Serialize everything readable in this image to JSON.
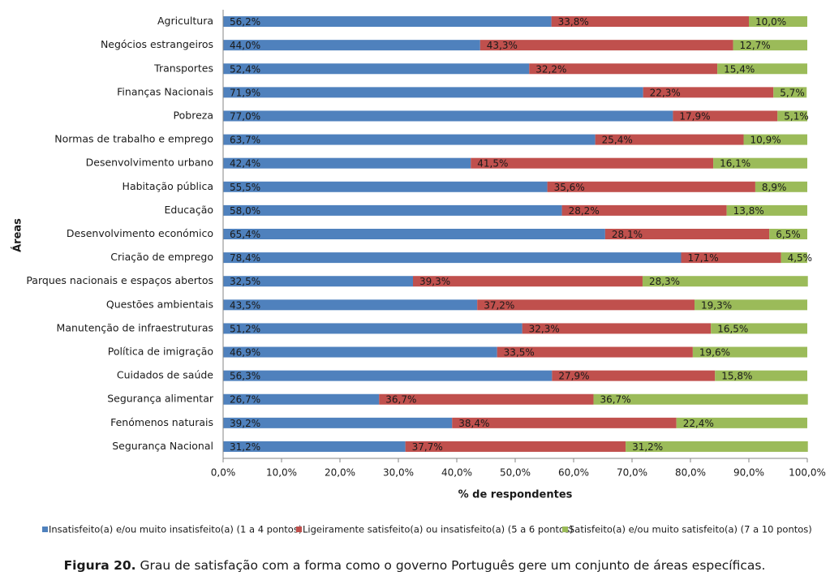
{
  "chart_data": {
    "type": "stacked-bar-horizontal",
    "y_label": "Áreas",
    "x_label": "% de respondentes",
    "categories": [
      "Agricultura",
      "Negócios estrangeiros",
      "Transportes",
      "Finanças Nacionais",
      "Pobreza",
      "Normas de trabalho e emprego",
      "Desenvolvimento urbano",
      "Habitação pública",
      "Educação",
      "Desenvolvimento económico",
      "Criação de emprego",
      "Parques nacionais e espaços abertos",
      "Questões ambientais",
      "Manutenção de infraestruturas",
      "Política de imigração",
      "Cuidados de saúde",
      "Segurança alimentar",
      "Fenómenos naturais",
      "Segurança Nacional"
    ],
    "series": [
      {
        "name": "Insatisfeito(a) e/ou muito insatisfeito(a) (1 a 4 pontos)",
        "color": "#4f81bd",
        "values": [
          56.2,
          44.0,
          52.4,
          71.9,
          77.0,
          63.7,
          42.4,
          55.5,
          58.0,
          65.4,
          78.4,
          32.5,
          43.5,
          51.2,
          46.9,
          56.3,
          26.7,
          39.2,
          31.2
        ],
        "value_labels": [
          "56,2%",
          "44,0%",
          "52,4%",
          "71,9%",
          "77,0%",
          "63,7%",
          "42,4%",
          "55,5%",
          "58,0%",
          "65,4%",
          "78,4%",
          "32,5%",
          "43,5%",
          "51,2%",
          "46,9%",
          "56,3%",
          "26,7%",
          "39,2%",
          "31,2%"
        ]
      },
      {
        "name": "Ligeiramente satisfeito(a) ou insatisfeito(a) (5 a 6 pontos)",
        "color": "#c0504d",
        "values": [
          33.8,
          43.3,
          32.2,
          22.3,
          17.9,
          25.4,
          41.5,
          35.6,
          28.2,
          28.1,
          17.1,
          39.3,
          37.2,
          32.3,
          33.5,
          27.9,
          36.7,
          38.4,
          37.7
        ],
        "value_labels": [
          "33,8%",
          "43,3%",
          "32,2%",
          "22,3%",
          "17,9%",
          "25,4%",
          "41,5%",
          "35,6%",
          "28,2%",
          "28,1%",
          "17,1%",
          "39,3%",
          "37,2%",
          "32,3%",
          "33,5%",
          "27,9%",
          "36,7%",
          "38,4%",
          "37,7%"
        ]
      },
      {
        "name": "Satisfeito(a) e/ou muito satisfeito(a) (7 a 10 pontos)",
        "color": "#9bbb59",
        "values": [
          10.0,
          12.7,
          15.4,
          5.7,
          5.1,
          10.9,
          16.1,
          8.9,
          13.8,
          6.5,
          4.5,
          28.3,
          19.3,
          16.5,
          19.6,
          15.8,
          36.7,
          22.4,
          31.2
        ],
        "value_labels": [
          "10,0%",
          "12,7%",
          "15,4%",
          "5,7%",
          "5,1%",
          "10,9%",
          "16,1%",
          "8,9%",
          "13,8%",
          "6,5%",
          "4,5%",
          "28,3%",
          "19,3%",
          "16,5%",
          "19,6%",
          "15,8%",
          "36,7%",
          "22,4%",
          "31,2%"
        ]
      }
    ],
    "xlim": [
      0,
      100
    ],
    "xticks": [
      {
        "value": 0,
        "label": "0,0%"
      },
      {
        "value": 10,
        "label": "10,0%"
      },
      {
        "value": 20,
        "label": "20,0%"
      },
      {
        "value": 30,
        "label": "30,0%"
      },
      {
        "value": 40,
        "label": "40,0%"
      },
      {
        "value": 50,
        "label": "50,0%"
      },
      {
        "value": 60,
        "label": "60,0%"
      },
      {
        "value": 70,
        "label": "70,0%"
      },
      {
        "value": 80,
        "label": "80,0%"
      },
      {
        "value": 90,
        "label": "90,0%"
      },
      {
        "value": 100,
        "label": "100,0%"
      }
    ],
    "grid": false,
    "legend": "bottom",
    "caption_label": "Figura 20.",
    "caption": "Grau de satisfação com a forma como o governo Português gere um conjunto de áreas específicas."
  }
}
